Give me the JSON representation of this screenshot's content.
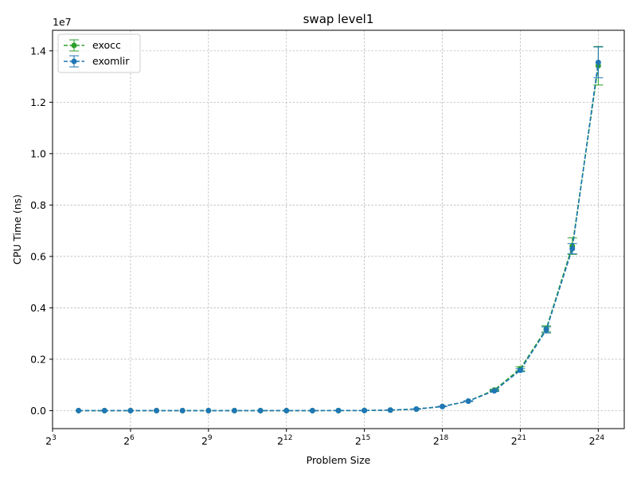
{
  "chart_data": {
    "type": "line",
    "title": "swap level1",
    "xlabel": "Problem Size",
    "ylabel": "CPU Time (ns)",
    "x_scale": "log2",
    "xlim_log2": [
      3,
      25
    ],
    "ylim": [
      -0.07,
      1.48
    ],
    "y_multiplier_label": "1e7",
    "grid": true,
    "legend_position": "top-left",
    "x_ticks": [
      {
        "base": "2",
        "exp": "3",
        "log2": 3
      },
      {
        "base": "2",
        "exp": "6",
        "log2": 6
      },
      {
        "base": "2",
        "exp": "9",
        "log2": 9
      },
      {
        "base": "2",
        "exp": "12",
        "log2": 12
      },
      {
        "base": "2",
        "exp": "15",
        "log2": 15
      },
      {
        "base": "2",
        "exp": "18",
        "log2": 18
      },
      {
        "base": "2",
        "exp": "21",
        "log2": 21
      },
      {
        "base": "2",
        "exp": "24",
        "log2": 24
      }
    ],
    "y_ticks": [
      {
        "label": "0.0",
        "value": 0.0
      },
      {
        "label": "0.2",
        "value": 0.2
      },
      {
        "label": "0.4",
        "value": 0.4
      },
      {
        "label": "0.6",
        "value": 0.6
      },
      {
        "label": "0.8",
        "value": 0.8
      },
      {
        "label": "1.0",
        "value": 1.0
      },
      {
        "label": "1.2",
        "value": 1.2
      },
      {
        "label": "1.4",
        "value": 1.4
      }
    ],
    "x_log2": [
      4,
      5,
      6,
      7,
      8,
      9,
      10,
      11,
      12,
      13,
      14,
      15,
      16,
      17,
      18,
      19,
      20,
      21,
      22,
      23,
      24
    ],
    "series": [
      {
        "name": "exocc",
        "color": "#2ca02c",
        "values": [
          0,
          0,
          0,
          0,
          0,
          0,
          0,
          0,
          0,
          0,
          0.0002,
          0.0005,
          0.002,
          0.006,
          0.016,
          0.037,
          0.08,
          0.163,
          0.318,
          0.64,
          1.342
        ],
        "errors": [
          0,
          0,
          0,
          0,
          0,
          0,
          0,
          0,
          0,
          0,
          0,
          0,
          0,
          0.0003,
          0.0008,
          0.0015,
          0.003,
          0.008,
          0.012,
          0.032,
          0.075
        ]
      },
      {
        "name": "exomlir",
        "color": "#1f77b4",
        "values": [
          0,
          0,
          0,
          0,
          0,
          0,
          0,
          0,
          0,
          0,
          0.0002,
          0.0005,
          0.002,
          0.006,
          0.016,
          0.037,
          0.077,
          0.157,
          0.314,
          0.63,
          1.355
        ],
        "errors": [
          0,
          0,
          0,
          0,
          0,
          0,
          0,
          0,
          0,
          0,
          0,
          0,
          0,
          0.0003,
          0.0008,
          0.0015,
          0.003,
          0.006,
          0.012,
          0.02,
          0.06
        ]
      }
    ]
  }
}
